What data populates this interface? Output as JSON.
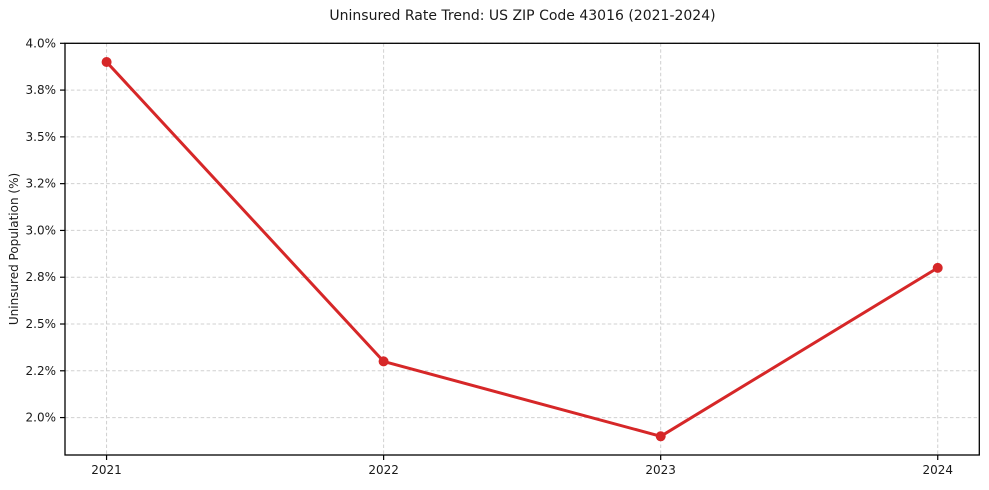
{
  "chart_data": {
    "type": "line",
    "title": "Uninsured Rate Trend: US ZIP Code 43016 (2021-2024)",
    "xlabel": "",
    "ylabel": "Uninsured Population (%)",
    "x": [
      2021,
      2022,
      2023,
      2024
    ],
    "series": [
      {
        "name": "Uninsured rate",
        "values": [
          3.9,
          2.3,
          1.9,
          2.8
        ]
      }
    ],
    "xlim": [
      2020.85,
      2024.15
    ],
    "ylim": [
      1.8,
      4.0
    ],
    "xticks": [
      {
        "value": 2021,
        "label": "2021"
      },
      {
        "value": 2022,
        "label": "2022"
      },
      {
        "value": 2023,
        "label": "2023"
      },
      {
        "value": 2024,
        "label": "2024"
      }
    ],
    "yticks": [
      {
        "value": 2.0,
        "label": "2.0%"
      },
      {
        "value": 2.25,
        "label": "2.2%"
      },
      {
        "value": 2.5,
        "label": "2.5%"
      },
      {
        "value": 2.75,
        "label": "2.8%"
      },
      {
        "value": 3.0,
        "label": "3.0%"
      },
      {
        "value": 3.25,
        "label": "3.2%"
      },
      {
        "value": 3.5,
        "label": "3.5%"
      },
      {
        "value": 3.75,
        "label": "3.8%"
      },
      {
        "value": 4.0,
        "label": "4.0%"
      }
    ],
    "grid": true,
    "legend": "none",
    "colors": {
      "line": "#d62728",
      "marker": "#d62728",
      "grid": "#d0d0d0",
      "spine": "#000000",
      "tick_text": "#1a1a1a",
      "background": "#ffffff"
    }
  }
}
